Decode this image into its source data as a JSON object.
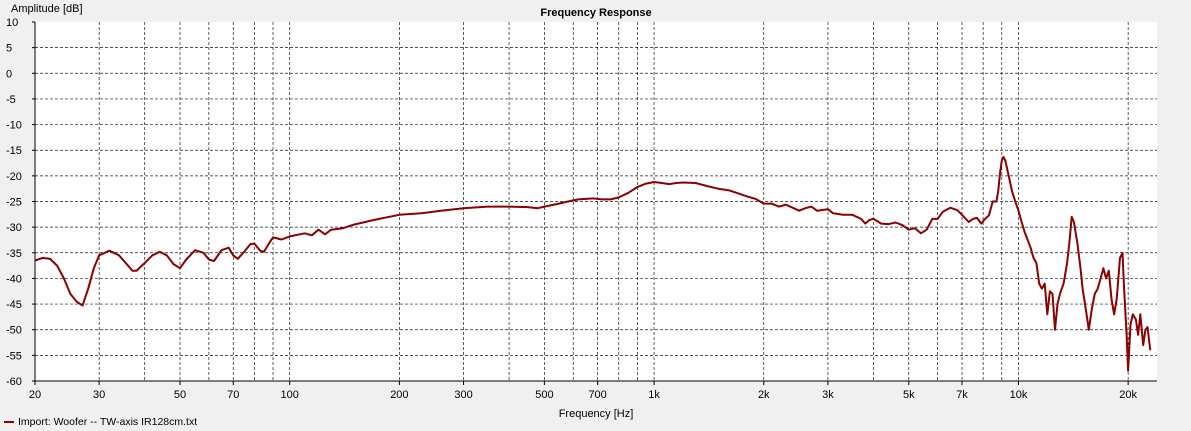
{
  "chart_data": {
    "type": "line",
    "title": "Frequency Response",
    "xlabel": "Frequency [Hz]",
    "ylabel": "Amplitude [dB]",
    "x_scale": "log",
    "xlim": [
      20,
      24000
    ],
    "ylim": [
      -60,
      10
    ],
    "grid": true,
    "x_ticks": [
      {
        "v": 20,
        "label": "20"
      },
      {
        "v": 30,
        "label": "30"
      },
      {
        "v": 50,
        "label": "50"
      },
      {
        "v": 70,
        "label": "70"
      },
      {
        "v": 100,
        "label": "100"
      },
      {
        "v": 200,
        "label": "200"
      },
      {
        "v": 300,
        "label": "300"
      },
      {
        "v": 500,
        "label": "500"
      },
      {
        "v": 700,
        "label": "700"
      },
      {
        "v": 1000,
        "label": "1k"
      },
      {
        "v": 2000,
        "label": "2k"
      },
      {
        "v": 3000,
        "label": "3k"
      },
      {
        "v": 5000,
        "label": "5k"
      },
      {
        "v": 7000,
        "label": "7k"
      },
      {
        "v": 10000,
        "label": "10k"
      },
      {
        "v": 20000,
        "label": "20k"
      }
    ],
    "y_ticks": [
      10,
      5,
      0,
      -5,
      -10,
      -15,
      -20,
      -25,
      -30,
      -35,
      -40,
      -45,
      -50,
      -55,
      -60
    ],
    "legend_position": "bottom-left",
    "series": [
      {
        "name": "Import: Woofer -- TW-axis IR128cm.txt",
        "color": "#8b0000",
        "points": [
          [
            20,
            -36.5
          ],
          [
            21,
            -36
          ],
          [
            22,
            -36.2
          ],
          [
            23,
            -37.5
          ],
          [
            24,
            -40
          ],
          [
            25,
            -43
          ],
          [
            26,
            -44.5
          ],
          [
            27,
            -45.3
          ],
          [
            28,
            -42
          ],
          [
            29,
            -38
          ],
          [
            30,
            -35.5
          ],
          [
            32,
            -34.6
          ],
          [
            34,
            -35.5
          ],
          [
            36,
            -37.5
          ],
          [
            37,
            -38.5
          ],
          [
            38,
            -38.5
          ],
          [
            40,
            -37
          ],
          [
            42,
            -35.5
          ],
          [
            44,
            -34.8
          ],
          [
            46,
            -35.5
          ],
          [
            48,
            -37.2
          ],
          [
            50,
            -38
          ],
          [
            52,
            -36.3
          ],
          [
            55,
            -34.5
          ],
          [
            58,
            -35
          ],
          [
            60,
            -36.3
          ],
          [
            62,
            -36.6
          ],
          [
            65,
            -34.5
          ],
          [
            68,
            -34
          ],
          [
            70,
            -35.5
          ],
          [
            72,
            -36.2
          ],
          [
            75,
            -34.8
          ],
          [
            78,
            -33.3
          ],
          [
            80,
            -33.2
          ],
          [
            83,
            -34.6
          ],
          [
            85,
            -34.8
          ],
          [
            88,
            -33
          ],
          [
            90,
            -32
          ],
          [
            95,
            -32.4
          ],
          [
            100,
            -31.8
          ],
          [
            105,
            -31.5
          ],
          [
            110,
            -31.2
          ],
          [
            115,
            -31.6
          ],
          [
            120,
            -30.5
          ],
          [
            125,
            -31.4
          ],
          [
            130,
            -30.5
          ],
          [
            140,
            -30.2
          ],
          [
            150,
            -29.5
          ],
          [
            170,
            -28.6
          ],
          [
            200,
            -27.6
          ],
          [
            230,
            -27.3
          ],
          [
            260,
            -26.8
          ],
          [
            300,
            -26.3
          ],
          [
            350,
            -26
          ],
          [
            400,
            -26
          ],
          [
            450,
            -26.1
          ],
          [
            480,
            -26.3
          ],
          [
            500,
            -26
          ],
          [
            540,
            -25.5
          ],
          [
            580,
            -25
          ],
          [
            620,
            -24.6
          ],
          [
            680,
            -24.4
          ],
          [
            720,
            -24.6
          ],
          [
            760,
            -24.6
          ],
          [
            800,
            -24.2
          ],
          [
            850,
            -23.3
          ],
          [
            900,
            -22.2
          ],
          [
            950,
            -21.5
          ],
          [
            1000,
            -21.2
          ],
          [
            1050,
            -21.4
          ],
          [
            1100,
            -21.6
          ],
          [
            1150,
            -21.4
          ],
          [
            1200,
            -21.3
          ],
          [
            1300,
            -21.4
          ],
          [
            1400,
            -22
          ],
          [
            1500,
            -22.5
          ],
          [
            1600,
            -22.8
          ],
          [
            1700,
            -23.4
          ],
          [
            1800,
            -24
          ],
          [
            1900,
            -24.5
          ],
          [
            2000,
            -25.4
          ],
          [
            2100,
            -25.4
          ],
          [
            2200,
            -26
          ],
          [
            2300,
            -25.6
          ],
          [
            2400,
            -26.2
          ],
          [
            2500,
            -26.8
          ],
          [
            2600,
            -26.3
          ],
          [
            2700,
            -26
          ],
          [
            2800,
            -26.8
          ],
          [
            3000,
            -26.5
          ],
          [
            3100,
            -27.3
          ],
          [
            3300,
            -27.6
          ],
          [
            3500,
            -27.6
          ],
          [
            3700,
            -28.4
          ],
          [
            3800,
            -29.3
          ],
          [
            3900,
            -28.6
          ],
          [
            4000,
            -28.4
          ],
          [
            4200,
            -29.3
          ],
          [
            4400,
            -29.4
          ],
          [
            4600,
            -29.1
          ],
          [
            4800,
            -29.6
          ],
          [
            5000,
            -30.5
          ],
          [
            5200,
            -30.2
          ],
          [
            5400,
            -31.2
          ],
          [
            5600,
            -30.5
          ],
          [
            5800,
            -28.4
          ],
          [
            6000,
            -28.4
          ],
          [
            6200,
            -27
          ],
          [
            6500,
            -26.2
          ],
          [
            6800,
            -26.7
          ],
          [
            7000,
            -27.6
          ],
          [
            7300,
            -29
          ],
          [
            7500,
            -28.4
          ],
          [
            7700,
            -28.2
          ],
          [
            7900,
            -29.3
          ],
          [
            8100,
            -28.4
          ],
          [
            8300,
            -27.7
          ],
          [
            8500,
            -25
          ],
          [
            8700,
            -25
          ],
          [
            8800,
            -23
          ],
          [
            8900,
            -19.5
          ],
          [
            9000,
            -17
          ],
          [
            9100,
            -16.3
          ],
          [
            9200,
            -17
          ],
          [
            9400,
            -20
          ],
          [
            9600,
            -23
          ],
          [
            9800,
            -25
          ],
          [
            10000,
            -26.8
          ],
          [
            10200,
            -29
          ],
          [
            10400,
            -31
          ],
          [
            10600,
            -32.5
          ],
          [
            10800,
            -34
          ],
          [
            11000,
            -36
          ],
          [
            11200,
            -37
          ],
          [
            11400,
            -41
          ],
          [
            11600,
            -42
          ],
          [
            11800,
            -41
          ],
          [
            12000,
            -47
          ],
          [
            12200,
            -42.5
          ],
          [
            12400,
            -43
          ],
          [
            12600,
            -50
          ],
          [
            12800,
            -45
          ],
          [
            13000,
            -43
          ],
          [
            13300,
            -41
          ],
          [
            13600,
            -37
          ],
          [
            13800,
            -33
          ],
          [
            14000,
            -28
          ],
          [
            14200,
            -29
          ],
          [
            14500,
            -33
          ],
          [
            14800,
            -38
          ],
          [
            15000,
            -42
          ],
          [
            15300,
            -46
          ],
          [
            15600,
            -50
          ],
          [
            15900,
            -46
          ],
          [
            16200,
            -43
          ],
          [
            16500,
            -42
          ],
          [
            16800,
            -40
          ],
          [
            17100,
            -38
          ],
          [
            17400,
            -40
          ],
          [
            17700,
            -38.5
          ],
          [
            18000,
            -44
          ],
          [
            18300,
            -47
          ],
          [
            18600,
            -44
          ],
          [
            19000,
            -36
          ],
          [
            19300,
            -35
          ],
          [
            19500,
            -42
          ],
          [
            19800,
            -51
          ],
          [
            20000,
            -58
          ],
          [
            20300,
            -49
          ],
          [
            20600,
            -47
          ],
          [
            21000,
            -48
          ],
          [
            21300,
            -51
          ],
          [
            21600,
            -47
          ],
          [
            22000,
            -53
          ],
          [
            22300,
            -50
          ],
          [
            22600,
            -49.5
          ],
          [
            23000,
            -54
          ]
        ]
      }
    ]
  }
}
